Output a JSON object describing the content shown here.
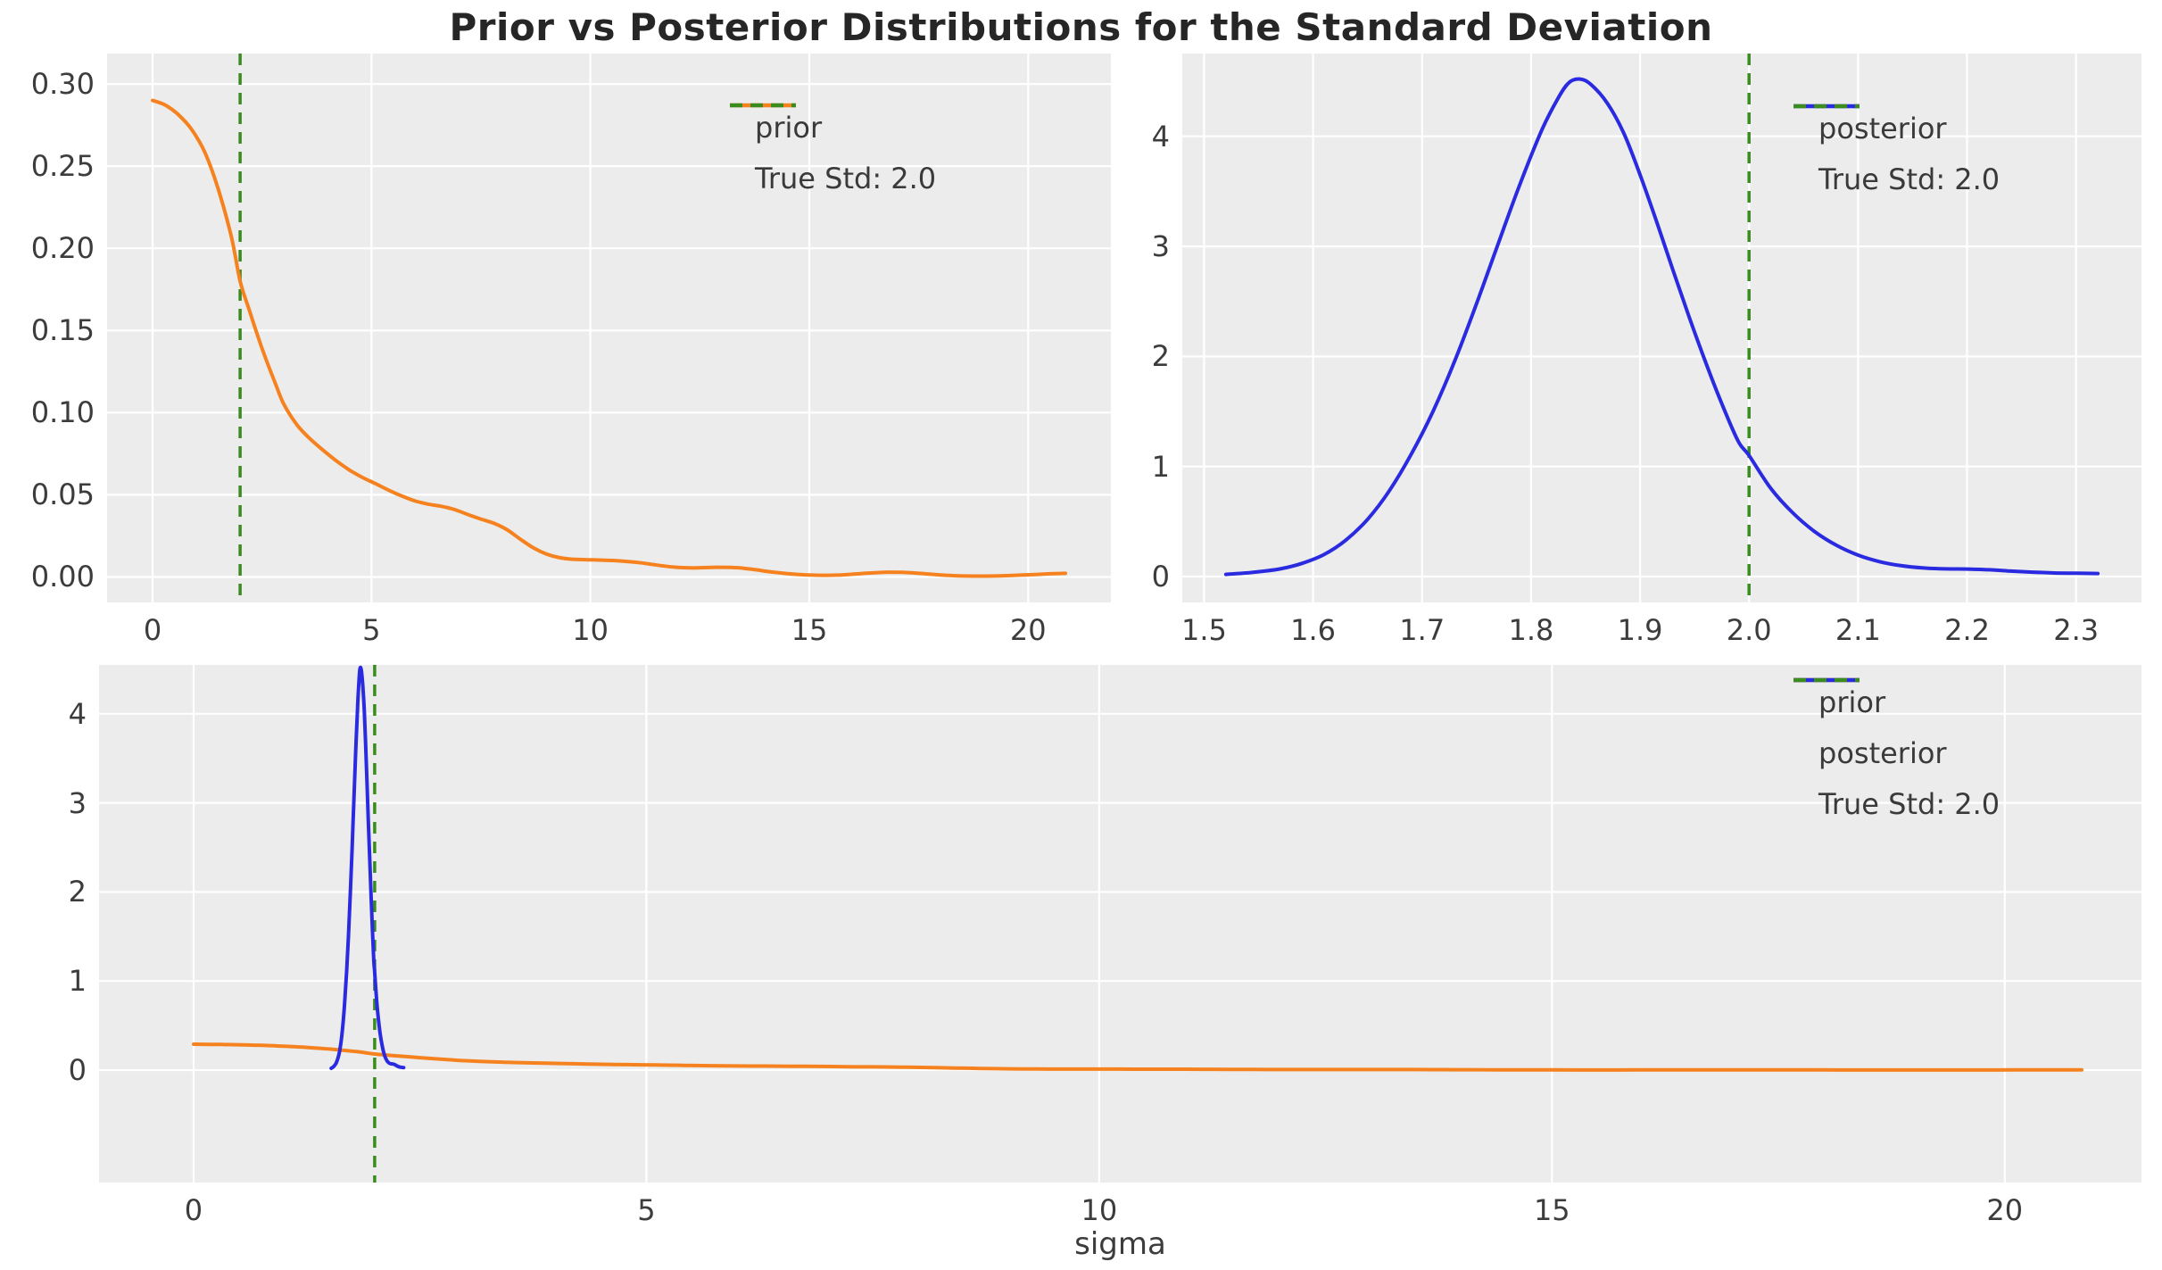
{
  "figure": {
    "colors": {
      "prior": "#f5821f",
      "posterior": "#2a2ae0",
      "true_std": "#3a8c1f",
      "panel_bg": "#ececec",
      "grid": "#ffffff",
      "tick_text": "#3c3c3c",
      "title_text": "#262626"
    }
  },
  "chart_data": {
    "type": "line",
    "title": "Prior vs Posterior Distributions for the Standard Deviation",
    "xlabel": "sigma",
    "true_std": 2.0,
    "legend_position": "upper right",
    "grid": true,
    "series_data": {
      "prior": [
        [
          0.0,
          0.29
        ],
        [
          0.3,
          0.287
        ],
        [
          0.6,
          0.281
        ],
        [
          0.9,
          0.272
        ],
        [
          1.2,
          0.258
        ],
        [
          1.5,
          0.236
        ],
        [
          1.8,
          0.207
        ],
        [
          2.0,
          0.18
        ],
        [
          2.2,
          0.163
        ],
        [
          2.5,
          0.139
        ],
        [
          2.8,
          0.118
        ],
        [
          3.0,
          0.105
        ],
        [
          3.3,
          0.0925
        ],
        [
          3.6,
          0.084
        ],
        [
          3.9,
          0.077
        ],
        [
          4.2,
          0.0706
        ],
        [
          4.5,
          0.065
        ],
        [
          4.8,
          0.0605
        ],
        [
          5.1,
          0.0567
        ],
        [
          5.4,
          0.0527
        ],
        [
          5.7,
          0.0492
        ],
        [
          6.0,
          0.0462
        ],
        [
          6.3,
          0.0443
        ],
        [
          6.6,
          0.043
        ],
        [
          6.9,
          0.041
        ],
        [
          7.2,
          0.038
        ],
        [
          7.5,
          0.0352
        ],
        [
          7.8,
          0.0326
        ],
        [
          8.1,
          0.0287
        ],
        [
          8.4,
          0.023
        ],
        [
          8.7,
          0.0177
        ],
        [
          9.0,
          0.0139
        ],
        [
          9.3,
          0.0117
        ],
        [
          9.6,
          0.0108
        ],
        [
          9.9,
          0.0105
        ],
        [
          10.2,
          0.0103
        ],
        [
          10.5,
          0.01
        ],
        [
          10.8,
          0.0095
        ],
        [
          11.1,
          0.0088
        ],
        [
          11.4,
          0.0077
        ],
        [
          11.7,
          0.0066
        ],
        [
          12.0,
          0.0058
        ],
        [
          12.3,
          0.0055
        ],
        [
          12.6,
          0.0057
        ],
        [
          12.9,
          0.0059
        ],
        [
          13.2,
          0.0058
        ],
        [
          13.5,
          0.0053
        ],
        [
          13.8,
          0.0043
        ],
        [
          14.1,
          0.0032
        ],
        [
          14.4,
          0.0023
        ],
        [
          14.7,
          0.0016
        ],
        [
          15.0,
          0.0012
        ],
        [
          15.3,
          0.001
        ],
        [
          15.6,
          0.0011
        ],
        [
          15.9,
          0.0015
        ],
        [
          16.2,
          0.0021
        ],
        [
          16.5,
          0.0026
        ],
        [
          16.8,
          0.0029
        ],
        [
          17.1,
          0.0028
        ],
        [
          17.4,
          0.0024
        ],
        [
          17.7,
          0.0018
        ],
        [
          18.0,
          0.0012
        ],
        [
          18.3,
          0.0008
        ],
        [
          18.6,
          0.0006
        ],
        [
          18.9,
          0.0005
        ],
        [
          19.2,
          0.0006
        ],
        [
          19.5,
          0.0008
        ],
        [
          19.8,
          0.0011
        ],
        [
          20.1,
          0.0014
        ],
        [
          20.4,
          0.0018
        ],
        [
          20.7,
          0.0021
        ],
        [
          20.85,
          0.0022
        ]
      ],
      "posterior": [
        [
          1.52,
          0.02
        ],
        [
          1.545,
          0.038
        ],
        [
          1.57,
          0.07
        ],
        [
          1.59,
          0.12
        ],
        [
          1.61,
          0.2
        ],
        [
          1.63,
          0.33
        ],
        [
          1.65,
          0.52
        ],
        [
          1.67,
          0.78
        ],
        [
          1.69,
          1.11
        ],
        [
          1.71,
          1.5
        ],
        [
          1.73,
          1.96
        ],
        [
          1.75,
          2.48
        ],
        [
          1.77,
          3.03
        ],
        [
          1.79,
          3.57
        ],
        [
          1.81,
          4.06
        ],
        [
          1.825,
          4.35
        ],
        [
          1.835,
          4.49
        ],
        [
          1.845,
          4.52
        ],
        [
          1.855,
          4.47
        ],
        [
          1.87,
          4.3
        ],
        [
          1.885,
          4.03
        ],
        [
          1.9,
          3.65
        ],
        [
          1.915,
          3.23
        ],
        [
          1.93,
          2.79
        ],
        [
          1.945,
          2.36
        ],
        [
          1.96,
          1.95
        ],
        [
          1.975,
          1.57
        ],
        [
          1.99,
          1.23
        ],
        [
          2.0,
          1.1
        ],
        [
          2.02,
          0.8
        ],
        [
          2.04,
          0.58
        ],
        [
          2.06,
          0.41
        ],
        [
          2.08,
          0.285
        ],
        [
          2.1,
          0.195
        ],
        [
          2.12,
          0.135
        ],
        [
          2.14,
          0.098
        ],
        [
          2.16,
          0.078
        ],
        [
          2.18,
          0.07
        ],
        [
          2.2,
          0.068
        ],
        [
          2.22,
          0.062
        ],
        [
          2.24,
          0.05
        ],
        [
          2.26,
          0.04
        ],
        [
          2.28,
          0.033
        ],
        [
          2.3,
          0.03
        ],
        [
          2.32,
          0.028
        ]
      ]
    },
    "panels": [
      {
        "id": "prior-panel",
        "series": [
          "prior"
        ],
        "xlim": [
          -1.04,
          21.89
        ],
        "ylim": [
          -0.0155,
          0.3185
        ],
        "xticks": [
          {
            "v": 0,
            "label": "0"
          },
          {
            "v": 5,
            "label": "5"
          },
          {
            "v": 10,
            "label": "10"
          },
          {
            "v": 15,
            "label": "15"
          },
          {
            "v": 20,
            "label": "20"
          }
        ],
        "yticks": [
          {
            "v": 0,
            "label": "0.00"
          },
          {
            "v": 0.05,
            "label": "0.05"
          },
          {
            "v": 0.1,
            "label": "0.10"
          },
          {
            "v": 0.15,
            "label": "0.15"
          },
          {
            "v": 0.2,
            "label": "0.20"
          },
          {
            "v": 0.25,
            "label": "0.25"
          },
          {
            "v": 0.3,
            "label": "0.30"
          }
        ],
        "vline": {
          "x": 2.0
        },
        "legend": [
          {
            "label": "prior",
            "color": "prior",
            "dash": false
          },
          {
            "label": "True Std: 2.0",
            "color": "true_std",
            "dash": true
          }
        ]
      },
      {
        "id": "posterior-panel",
        "series": [
          "posterior"
        ],
        "xlim": [
          1.48,
          2.36
        ],
        "ylim": [
          -0.235,
          4.752
        ],
        "xticks": [
          {
            "v": 1.5,
            "label": "1.5"
          },
          {
            "v": 1.6,
            "label": "1.6"
          },
          {
            "v": 1.7,
            "label": "1.7"
          },
          {
            "v": 1.8,
            "label": "1.8"
          },
          {
            "v": 1.9,
            "label": "1.9"
          },
          {
            "v": 2.0,
            "label": "2.0"
          },
          {
            "v": 2.1,
            "label": "2.1"
          },
          {
            "v": 2.2,
            "label": "2.2"
          },
          {
            "v": 2.3,
            "label": "2.3"
          }
        ],
        "yticks": [
          {
            "v": 0,
            "label": "0"
          },
          {
            "v": 1,
            "label": "1"
          },
          {
            "v": 2,
            "label": "2"
          },
          {
            "v": 3,
            "label": "3"
          },
          {
            "v": 4,
            "label": "4"
          }
        ],
        "vline": {
          "x": 2.0
        },
        "legend": [
          {
            "label": "posterior",
            "color": "posterior",
            "dash": false
          },
          {
            "label": "True Std: 2.0",
            "color": "true_std",
            "dash": true
          }
        ]
      },
      {
        "id": "combined-panel",
        "series": [
          "prior",
          "posterior"
        ],
        "xlim": [
          -1.044,
          21.51
        ],
        "ylim": [
          -1.263,
          4.549
        ],
        "xticks": [
          {
            "v": 0,
            "label": "0"
          },
          {
            "v": 5,
            "label": "5"
          },
          {
            "v": 10,
            "label": "10"
          },
          {
            "v": 15,
            "label": "15"
          },
          {
            "v": 20,
            "label": "20"
          }
        ],
        "yticks": [
          {
            "v": 0,
            "label": "0"
          },
          {
            "v": 1,
            "label": "1"
          },
          {
            "v": 2,
            "label": "2"
          },
          {
            "v": 3,
            "label": "3"
          },
          {
            "v": 4,
            "label": "4"
          }
        ],
        "vline": {
          "x": 2.0
        },
        "legend": [
          {
            "label": "prior",
            "color": "prior",
            "dash": false
          },
          {
            "label": "posterior",
            "color": "posterior",
            "dash": false
          },
          {
            "label": "True Std: 2.0",
            "color": "true_std",
            "dash": true
          }
        ]
      }
    ]
  }
}
